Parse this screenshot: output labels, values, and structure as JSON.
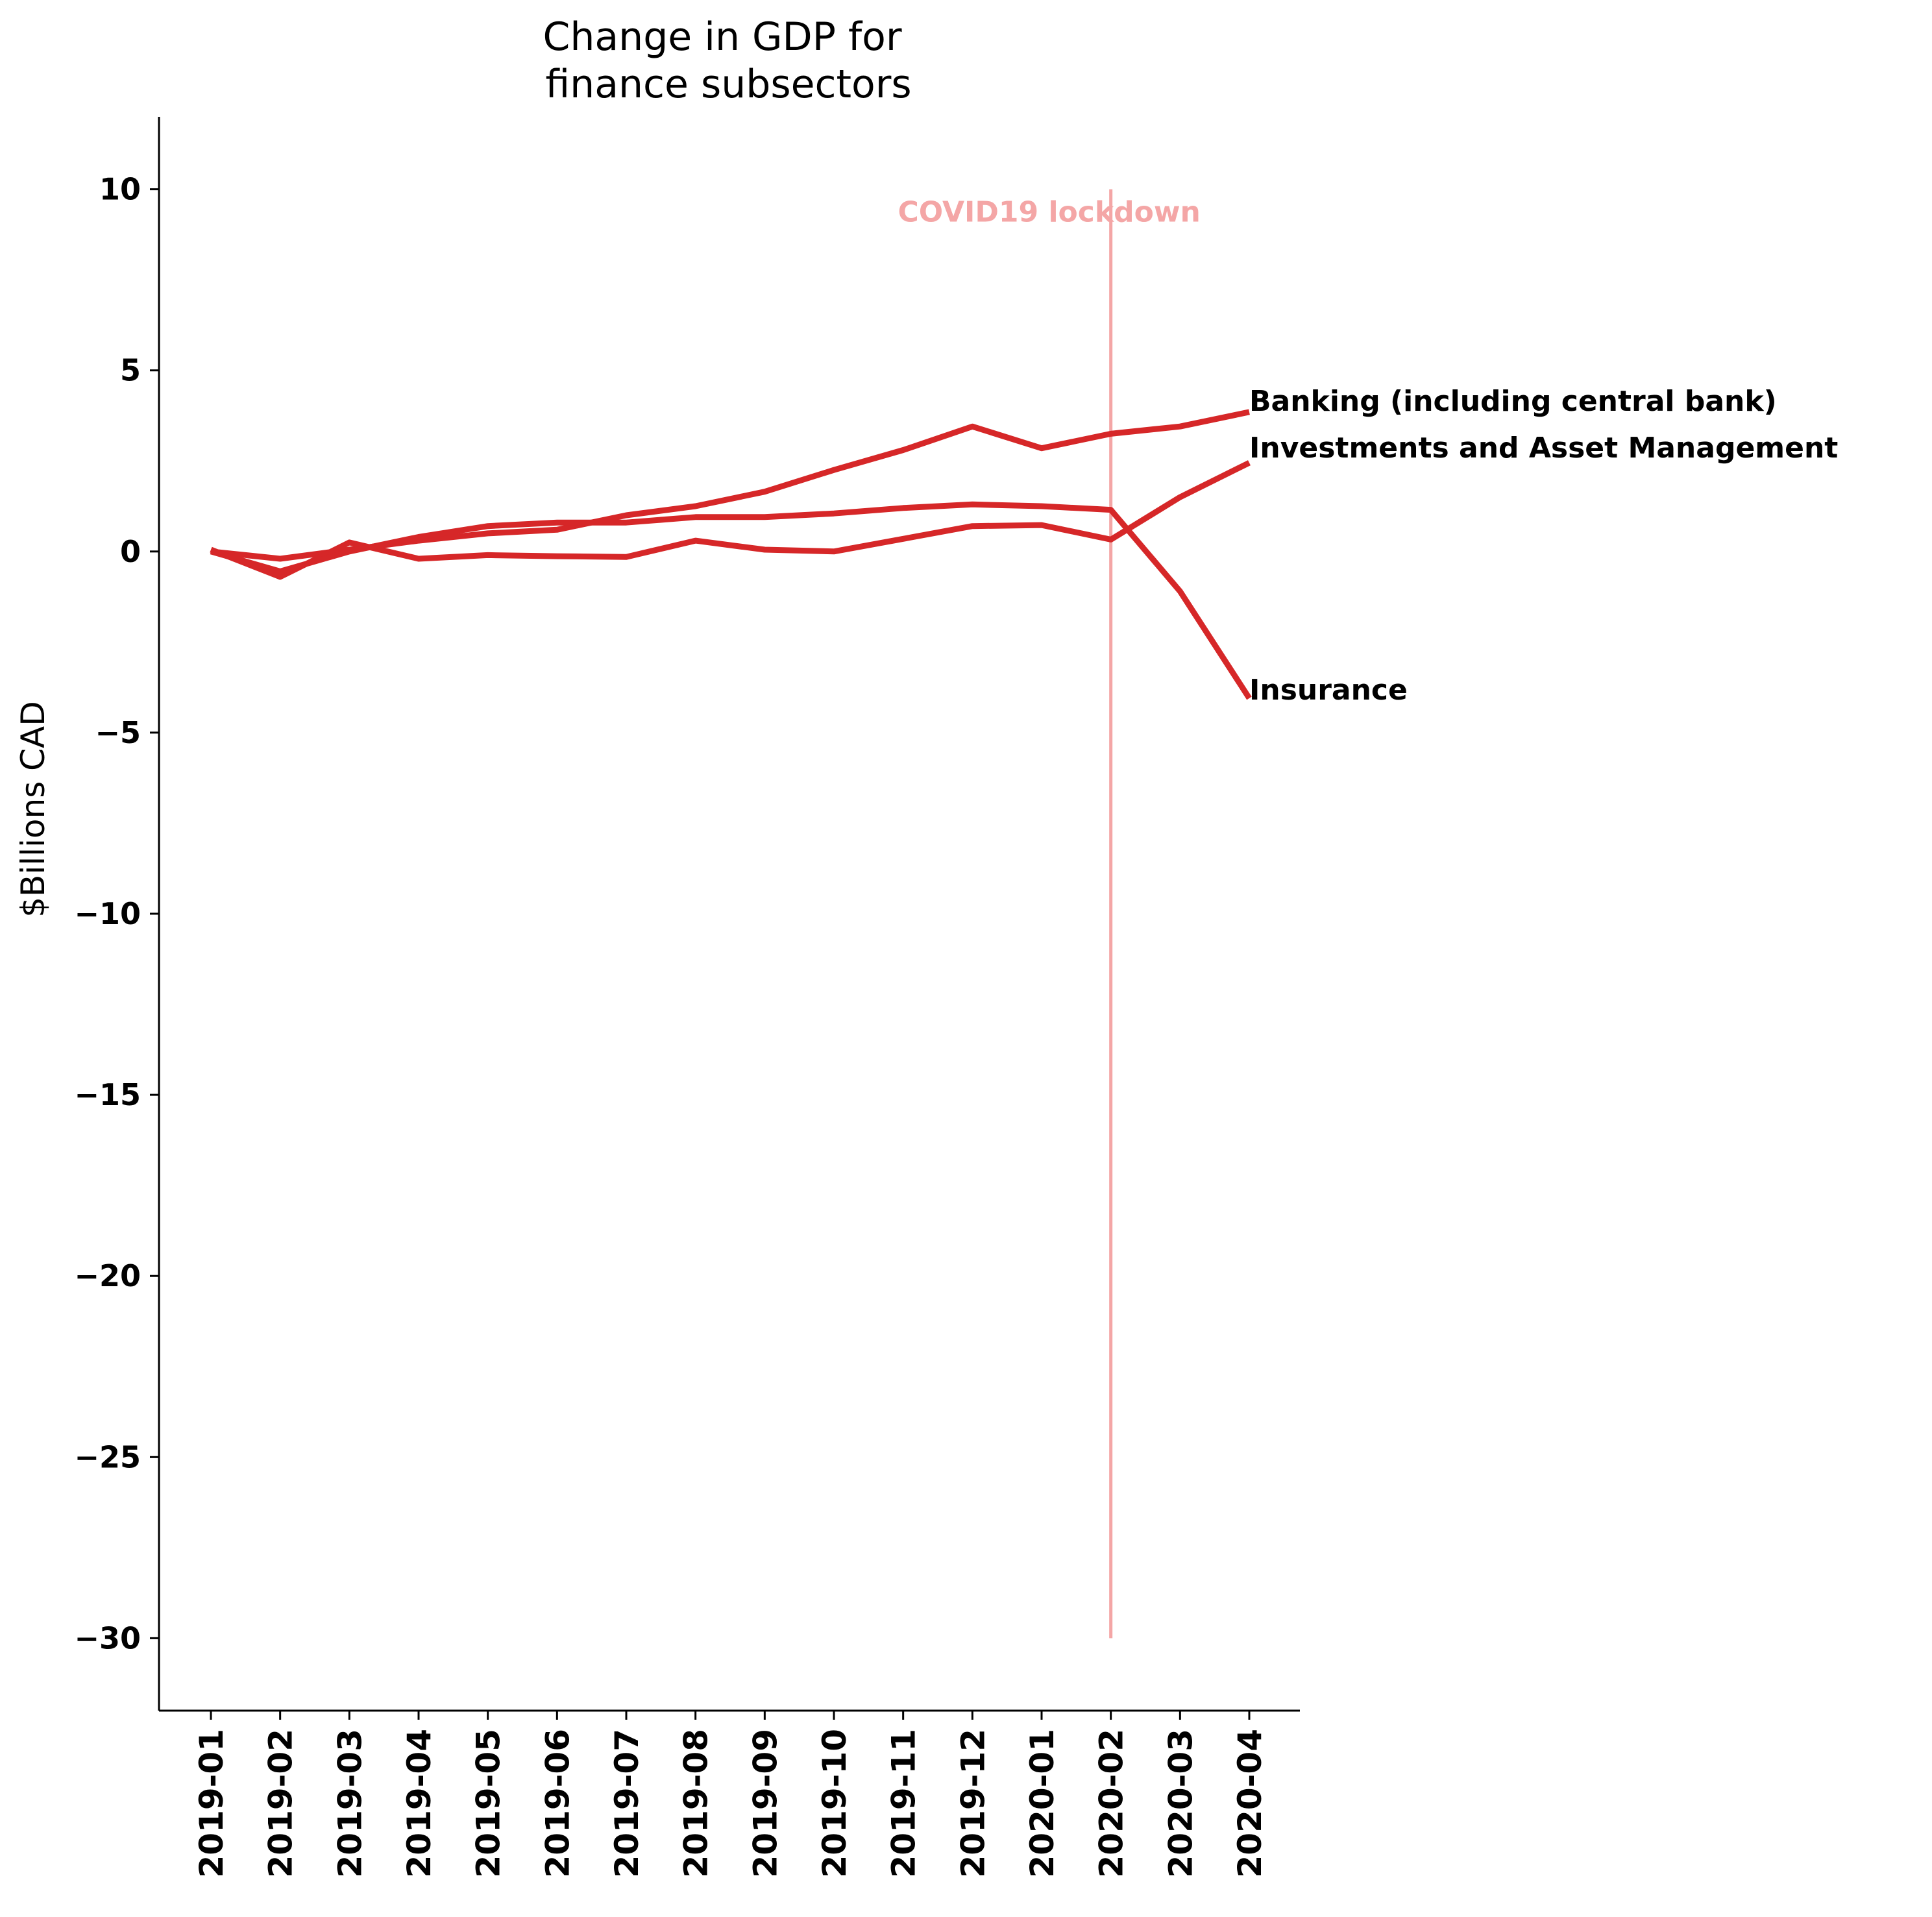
{
  "chart_data": {
    "type": "line",
    "title": "Change in GDP for\n finance subsectors",
    "xlabel": "",
    "ylabel": "$Billions CAD",
    "categories": [
      "2019-01",
      "2019-02",
      "2019-03",
      "2019-04",
      "2019-05",
      "2019-06",
      "2019-07",
      "2019-08",
      "2019-09",
      "2019-10",
      "2019-11",
      "2019-12",
      "2020-01",
      "2020-02",
      "2020-03",
      "2020-04"
    ],
    "ylim": [
      -32,
      12
    ],
    "yticks": [
      10,
      5,
      0,
      -5,
      -10,
      -15,
      -20,
      -25,
      -30
    ],
    "ytick_labels": [
      "10",
      "5",
      "0",
      "−5",
      "−10",
      "−15",
      "−20",
      "−25",
      "−30"
    ],
    "grid": false,
    "line_color": "#d62728",
    "series": [
      {
        "name": "Banking (including central bank)",
        "values": [
          0.0,
          -0.2,
          0.05,
          0.3,
          0.5,
          0.6,
          1.0,
          1.25,
          1.65,
          2.25,
          2.8,
          3.45,
          2.85,
          3.25,
          3.45,
          3.85
        ]
      },
      {
        "name": "Investments and Asset Management",
        "values": [
          0.05,
          -0.7,
          0.25,
          -0.2,
          -0.1,
          -0.13,
          -0.15,
          0.3,
          0.05,
          0.0,
          0.35,
          0.7,
          0.73,
          0.33,
          1.5,
          2.45
        ]
      },
      {
        "name": "Insurance",
        "values": [
          0.0,
          -0.55,
          0.0,
          0.4,
          0.7,
          0.8,
          0.8,
          0.95,
          0.95,
          1.05,
          1.2,
          1.3,
          1.25,
          1.15,
          -1.1,
          -4.05
        ]
      }
    ],
    "annotations": [
      {
        "text": "COVID19 lockdown",
        "x": "2020-02",
        "y_range": [
          -30,
          10
        ],
        "color": "#f4a6a6"
      }
    ]
  }
}
